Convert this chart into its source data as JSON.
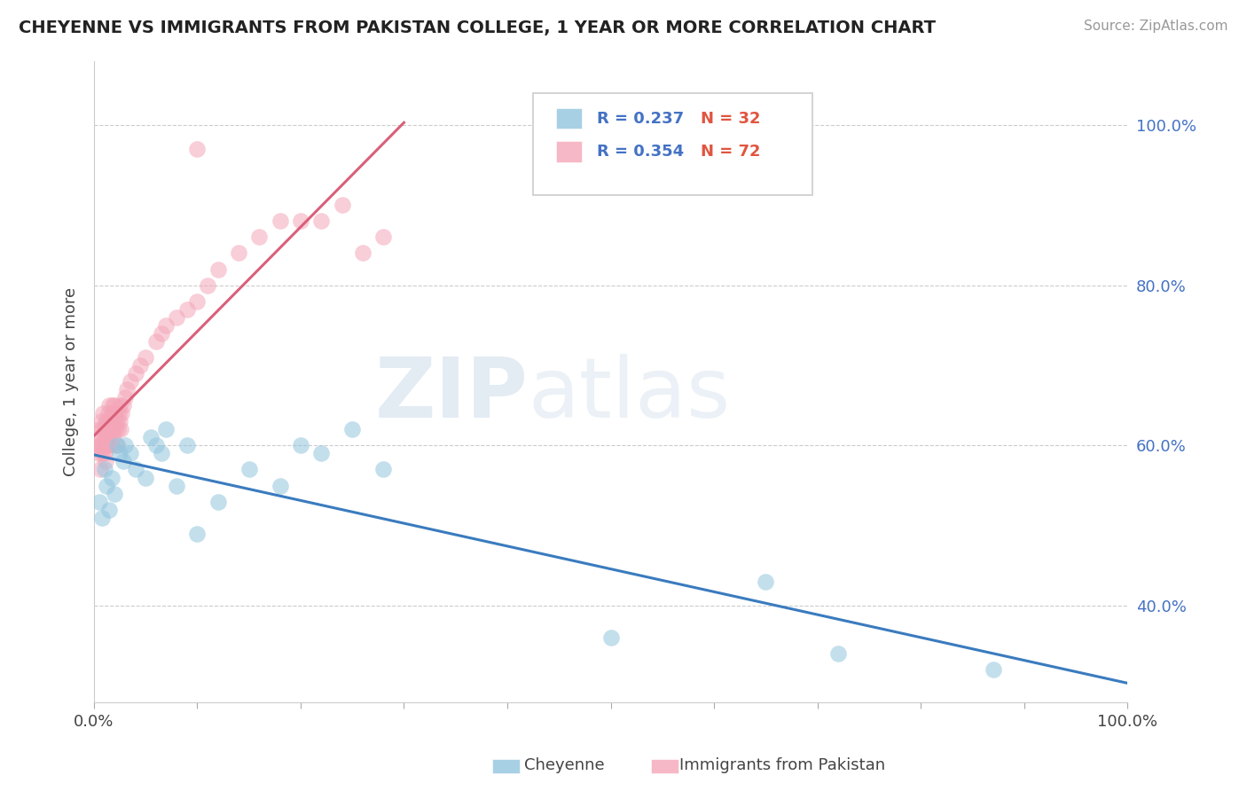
{
  "title": "CHEYENNE VS IMMIGRANTS FROM PAKISTAN COLLEGE, 1 YEAR OR MORE CORRELATION CHART",
  "source": "Source: ZipAtlas.com",
  "ylabel": "College, 1 year or more",
  "xlim": [
    0.0,
    1.0
  ],
  "ylim": [
    0.28,
    1.08
  ],
  "yticks": [
    0.4,
    0.6,
    0.8,
    1.0
  ],
  "yticklabels": [
    "40.0%",
    "60.0%",
    "80.0%",
    "100.0%"
  ],
  "blue_color": "#92c5de",
  "pink_color": "#f4a6b8",
  "blue_line_color": "#3a7bbf",
  "pink_line_color": "#d9607a",
  "legend_text_color_R": "#4472c4",
  "legend_text_color_N": "#e05540",
  "watermark_zip": "ZIP",
  "watermark_atlas": "atlas",
  "background_color": "#ffffff",
  "grid_color": "#cccccc",
  "blue_x": [
    0.005,
    0.008,
    0.01,
    0.012,
    0.015,
    0.017,
    0.02,
    0.022,
    0.025,
    0.028,
    0.03,
    0.035,
    0.04,
    0.05,
    0.055,
    0.06,
    0.065,
    0.07,
    0.08,
    0.09,
    0.1,
    0.12,
    0.15,
    0.18,
    0.2,
    0.22,
    0.25,
    0.28,
    0.5,
    0.65,
    0.72,
    0.87
  ],
  "blue_y": [
    0.53,
    0.51,
    0.57,
    0.55,
    0.52,
    0.56,
    0.54,
    0.6,
    0.59,
    0.58,
    0.6,
    0.59,
    0.57,
    0.56,
    0.61,
    0.6,
    0.59,
    0.62,
    0.55,
    0.6,
    0.49,
    0.53,
    0.57,
    0.55,
    0.6,
    0.59,
    0.62,
    0.57,
    0.36,
    0.43,
    0.34,
    0.32
  ],
  "pink_x": [
    0.003,
    0.004,
    0.005,
    0.005,
    0.006,
    0.006,
    0.007,
    0.007,
    0.008,
    0.008,
    0.009,
    0.009,
    0.01,
    0.01,
    0.01,
    0.011,
    0.011,
    0.012,
    0.012,
    0.013,
    0.013,
    0.013,
    0.014,
    0.014,
    0.015,
    0.015,
    0.015,
    0.016,
    0.016,
    0.017,
    0.017,
    0.018,
    0.018,
    0.018,
    0.019,
    0.019,
    0.02,
    0.02,
    0.021,
    0.021,
    0.022,
    0.022,
    0.023,
    0.024,
    0.025,
    0.025,
    0.026,
    0.027,
    0.028,
    0.03,
    0.032,
    0.035,
    0.04,
    0.045,
    0.05,
    0.06,
    0.065,
    0.07,
    0.08,
    0.09,
    0.1,
    0.11,
    0.12,
    0.14,
    0.16,
    0.18,
    0.2,
    0.22,
    0.24,
    0.26,
    0.28,
    0.1
  ],
  "pink_y": [
    0.6,
    0.59,
    0.6,
    0.62,
    0.57,
    0.61,
    0.6,
    0.63,
    0.59,
    0.62,
    0.6,
    0.64,
    0.61,
    0.59,
    0.62,
    0.58,
    0.63,
    0.6,
    0.62,
    0.61,
    0.63,
    0.6,
    0.62,
    0.64,
    0.61,
    0.63,
    0.65,
    0.6,
    0.63,
    0.62,
    0.64,
    0.61,
    0.63,
    0.65,
    0.62,
    0.64,
    0.63,
    0.65,
    0.62,
    0.64,
    0.6,
    0.63,
    0.62,
    0.64,
    0.63,
    0.65,
    0.62,
    0.64,
    0.65,
    0.66,
    0.67,
    0.68,
    0.69,
    0.7,
    0.71,
    0.73,
    0.74,
    0.75,
    0.76,
    0.77,
    0.78,
    0.8,
    0.82,
    0.84,
    0.86,
    0.88,
    0.88,
    0.88,
    0.9,
    0.84,
    0.86,
    0.97
  ]
}
